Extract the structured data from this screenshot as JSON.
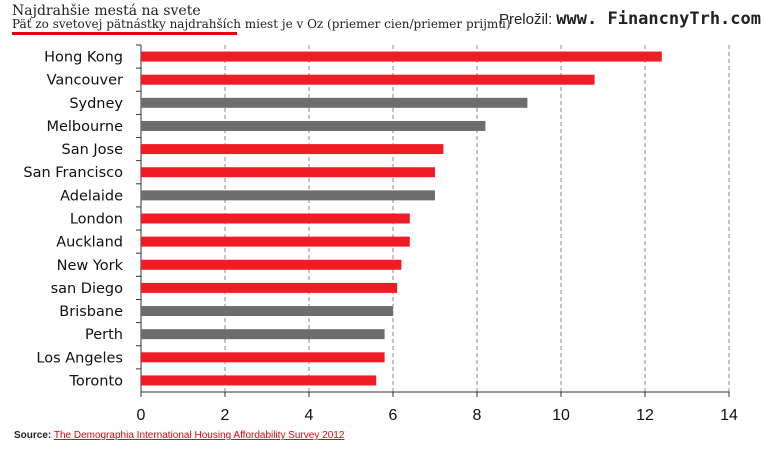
{
  "header": {
    "title": "Najdrahšie mestá na svete",
    "subtitle": "Päť zo svetovej pätnástky najdrahších miest je v Oz (priemer cien/priemer prijmu)",
    "credit_label": "Preložil:",
    "credit_site": "www. FinancnyTrh.com"
  },
  "source": {
    "label": "Source:",
    "text": "The Demographia International Housing Affordability Survey 2012"
  },
  "colors": {
    "highlight": "#ee1c25",
    "other": "#6d6d6d",
    "accent": "#e60012"
  },
  "chart_data": {
    "type": "bar",
    "orientation": "horizontal",
    "title": "Najdrahšie mestá na svete",
    "subtitle": "Päť zo svetovej pätnástky najdrahších miest je v Oz (priemer cien/priemer prijmu)",
    "categories": [
      "Hong Kong",
      "Vancouver",
      "Sydney",
      "Melbourne",
      "San Jose",
      "San Francisco",
      "Adelaide",
      "London",
      "Auckland",
      "New York",
      "san Diego",
      "Brisbane",
      "Perth",
      "Los Angeles",
      "Toronto"
    ],
    "values": [
      12.4,
      10.8,
      9.2,
      8.2,
      7.2,
      7.0,
      7.0,
      6.4,
      6.4,
      6.2,
      6.1,
      6.0,
      5.8,
      5.8,
      5.6
    ],
    "bar_colors": [
      "red",
      "red",
      "gray",
      "gray",
      "red",
      "red",
      "gray",
      "red",
      "red",
      "red",
      "red",
      "gray",
      "gray",
      "red",
      "red"
    ],
    "xlim": [
      0,
      14
    ],
    "xticks": [
      0,
      2,
      4,
      6,
      8,
      10,
      12,
      14
    ],
    "xlabel": "",
    "ylabel": "",
    "grid": "vertical dashed"
  }
}
